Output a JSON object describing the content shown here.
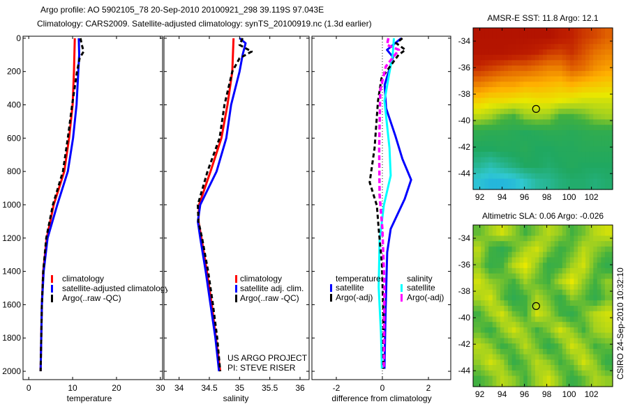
{
  "title": {
    "line1": "Argo profile: AO 5902105_78 20-Sep-2010 20100921_298 39.119S 97.043E",
    "line2": "Climatology: CARS2009. Satellite-adjusted climatology: synTS_20100919.nc (1.3d earlier)"
  },
  "credit": {
    "project": "US ARGO PROJECT",
    "pi": "PI: STEVE RISER",
    "stamp": "CSIRO 24-Sep-2010 10:32:10"
  },
  "chart_data": [
    {
      "type": "line",
      "xlabel": "temperature",
      "xlim": [
        -1.3,
        30.5
      ],
      "ylim": [
        2050,
        -12
      ],
      "xticks": [
        0,
        10,
        20,
        30
      ],
      "yticks": [
        0,
        200,
        400,
        600,
        800,
        1000,
        1200,
        1400,
        1600,
        1800,
        2000
      ],
      "legend": [
        "climatology",
        "satellite-adjusted climatology",
        "Argo(..raw -QC)"
      ],
      "series": [
        {
          "name": "climatology",
          "color": "#ff0000",
          "depth": [
            0,
            100,
            200,
            400,
            600,
            800,
            1000,
            1200,
            1400,
            1600,
            1800,
            2000
          ],
          "values": [
            10.5,
            10.4,
            10.3,
            10.0,
            9.2,
            8.1,
            5.7,
            4.1,
            3.3,
            3.0,
            2.85,
            2.7
          ]
        },
        {
          "name": "satellite-adjusted climatology",
          "color": "#0000ff",
          "depth": [
            0,
            100,
            200,
            400,
            600,
            800,
            1000,
            1200,
            1400,
            1600,
            1800,
            2000
          ],
          "values": [
            11.4,
            11.5,
            11.3,
            10.9,
            10.1,
            8.9,
            6.5,
            4.3,
            3.4,
            3.0,
            2.85,
            2.7
          ]
        },
        {
          "name": "Argo(..raw -QC)",
          "color": "#000000",
          "depth": [
            0,
            40,
            80,
            120,
            200,
            400,
            600,
            800,
            1000,
            1200,
            1400,
            1600,
            1800,
            2000
          ],
          "values": [
            11.8,
            12.1,
            12.5,
            11.6,
            11.0,
            9.9,
            8.9,
            7.8,
            5.5,
            4.0,
            3.3,
            3.0,
            2.85,
            2.7
          ]
        }
      ]
    },
    {
      "type": "line",
      "xlabel": "salinity",
      "xlim": [
        33.75,
        36.15
      ],
      "ylim": [
        2050,
        -12
      ],
      "xticks": [
        34,
        34.5,
        35,
        35.5,
        36
      ],
      "legend": [
        "climatology",
        "satellite adj. clim.",
        "Argo(..raw -QC)"
      ],
      "series": [
        {
          "name": "climatology",
          "color": "#ff0000",
          "depth": [
            0,
            100,
            200,
            400,
            600,
            800,
            1000,
            1100,
            1200,
            1400,
            1600,
            1800,
            2000
          ],
          "values": [
            34.9,
            34.89,
            34.88,
            34.8,
            34.7,
            34.52,
            34.33,
            34.32,
            34.37,
            34.46,
            34.54,
            34.61,
            34.68
          ]
        },
        {
          "name": "satellite adj. clim.",
          "color": "#0000ff",
          "depth": [
            0,
            30,
            100,
            200,
            400,
            600,
            800,
            1000,
            1100,
            1200,
            1400,
            1600,
            1800,
            2000
          ],
          "values": [
            35.0,
            35.1,
            35.05,
            35.0,
            34.86,
            34.78,
            34.62,
            34.35,
            34.31,
            34.35,
            34.44,
            34.52,
            34.6,
            34.66
          ]
        },
        {
          "name": "Argo(..raw -QC)",
          "color": "#000000",
          "depth": [
            0,
            40,
            80,
            120,
            200,
            400,
            600,
            800,
            1000,
            1100,
            1200,
            1400,
            1600,
            1800,
            2000
          ],
          "values": [
            35.05,
            35.0,
            35.2,
            35.0,
            34.88,
            34.75,
            34.67,
            34.47,
            34.31,
            34.32,
            34.38,
            34.48,
            34.56,
            34.63,
            34.68
          ]
        }
      ]
    },
    {
      "type": "line",
      "xlabel": "difference from climatology",
      "xlim": [
        -3.06,
        2.97
      ],
      "ylim": [
        2050,
        -12
      ],
      "xticks": [
        -2,
        0,
        2
      ],
      "legend_groups": [
        "temperature",
        "salinity"
      ],
      "legend": [
        "satellite",
        "Argo(-adj)",
        "satellite",
        "Argo(-adj)"
      ],
      "series": [
        {
          "name": "temperature satellite",
          "color": "#0000ff",
          "depth": [
            0,
            70,
            113,
            280,
            420,
            585,
            725,
            850,
            965,
            1145,
            1285,
            1635,
            1985
          ],
          "values": [
            0.82,
            0.2,
            0.46,
            0.1,
            0.16,
            0.56,
            0.87,
            1.25,
            0.97,
            0.36,
            0.21,
            0.14,
            0.09
          ]
        },
        {
          "name": "salinity satellite",
          "color": "#00ffff",
          "depth": [
            0,
            100,
            240,
            377,
            660,
            825,
            1005,
            1215,
            1495,
            1775,
            1985
          ],
          "values": [
            0.5,
            0.45,
            0.26,
            0.09,
            0.31,
            0.36,
            0.06,
            -0.12,
            -0.16,
            -0.06,
            -0.02
          ]
        },
        {
          "name": "temperature Argo(-adj)",
          "color": "#000000",
          "depth": [
            0,
            30,
            70,
            100,
            240,
            377,
            660,
            865,
            1005,
            1145,
            1355,
            1635,
            1985
          ],
          "values": [
            0.87,
            0.6,
            1.0,
            0.7,
            -0.04,
            -0.19,
            -0.34,
            -0.55,
            -0.24,
            -0.16,
            -0.02,
            0.04,
            0.04
          ]
        },
        {
          "name": "salinity Argo(-adj)",
          "color": "#ff00ff",
          "depth": [
            0,
            40,
            70,
            170,
            310,
            660,
            940,
            1145,
            1495,
            1985
          ],
          "values": [
            0.26,
            0.2,
            0.72,
            0.15,
            -0.09,
            -0.14,
            -0.12,
            0.0,
            0.09,
            0.06
          ]
        }
      ]
    },
    {
      "type": "heatmap",
      "title": "AMSR-E SST: 11.8 Argo: 12.1",
      "xlim": [
        91.4,
        103.9
      ],
      "ylim": [
        -45.2,
        -33.0
      ],
      "xticks": [
        92,
        94,
        96,
        98,
        100,
        102
      ],
      "yticks": [
        -34,
        -36,
        -38,
        -40,
        -42,
        -44
      ],
      "marker": [
        97.043,
        -39.119
      ],
      "grid": [
        [
          0.93,
          0.93,
          0.93,
          0.93,
          0.93,
          0.93,
          0.93,
          0.9,
          0.88,
          0.85,
          0.83,
          0.8
        ],
        [
          0.92,
          0.92,
          0.92,
          0.91,
          0.9,
          0.88,
          0.85,
          0.84,
          0.86,
          0.82,
          0.78,
          0.76
        ],
        [
          0.86,
          0.84,
          0.82,
          0.8,
          0.8,
          0.78,
          0.76,
          0.76,
          0.8,
          0.78,
          0.74,
          0.72
        ],
        [
          0.76,
          0.74,
          0.72,
          0.72,
          0.7,
          0.7,
          0.69,
          0.68,
          0.7,
          0.68,
          0.67,
          0.66
        ],
        [
          0.66,
          0.64,
          0.64,
          0.63,
          0.62,
          0.63,
          0.63,
          0.62,
          0.61,
          0.6,
          0.6,
          0.6
        ],
        [
          0.58,
          0.56,
          0.52,
          0.5,
          0.55,
          0.56,
          0.55,
          0.5,
          0.5,
          0.52,
          0.55,
          0.56
        ],
        [
          0.46,
          0.45,
          0.45,
          0.44,
          0.43,
          0.44,
          0.45,
          0.45,
          0.44,
          0.45,
          0.46,
          0.46
        ],
        [
          0.42,
          0.42,
          0.43,
          0.43,
          0.44,
          0.42,
          0.42,
          0.43,
          0.43,
          0.44,
          0.44,
          0.44
        ],
        [
          0.38,
          0.36,
          0.38,
          0.4,
          0.42,
          0.42,
          0.41,
          0.42,
          0.43,
          0.42,
          0.42,
          0.42
        ],
        [
          0.32,
          0.3,
          0.3,
          0.31,
          0.34,
          0.37,
          0.38,
          0.4,
          0.41,
          0.41,
          0.4,
          0.41
        ]
      ]
    },
    {
      "type": "heatmap",
      "title": "Altimetric SLA: 0.06 Argo: -0.026",
      "xlim": [
        91.4,
        103.9
      ],
      "ylim": [
        -45.2,
        -33.0
      ],
      "xticks": [
        92,
        94,
        96,
        98,
        100,
        102
      ],
      "yticks": [
        -34,
        -36,
        -38,
        -40,
        -42,
        -44
      ],
      "marker": [
        97.043,
        -39.119
      ],
      "grid": [
        [
          0.52,
          0.56,
          0.6,
          0.55,
          0.5,
          0.54,
          0.58,
          0.55,
          0.5,
          0.53,
          0.58,
          0.6
        ],
        [
          0.58,
          0.5,
          0.46,
          0.52,
          0.57,
          0.6,
          0.54,
          0.49,
          0.52,
          0.58,
          0.55,
          0.52
        ],
        [
          0.55,
          0.48,
          0.5,
          0.58,
          0.62,
          0.55,
          0.48,
          0.5,
          0.56,
          0.6,
          0.52,
          0.47
        ],
        [
          0.6,
          0.55,
          0.53,
          0.5,
          0.56,
          0.52,
          0.5,
          0.57,
          0.62,
          0.55,
          0.5,
          0.55
        ],
        [
          0.57,
          0.6,
          0.52,
          0.46,
          0.5,
          0.57,
          0.53,
          0.48,
          0.55,
          0.52,
          0.47,
          0.53
        ],
        [
          0.5,
          0.56,
          0.6,
          0.53,
          0.5,
          0.6,
          0.56,
          0.5,
          0.47,
          0.53,
          0.58,
          0.6
        ],
        [
          0.52,
          0.48,
          0.55,
          0.6,
          0.55,
          0.5,
          0.54,
          0.6,
          0.55,
          0.5,
          0.56,
          0.58
        ],
        [
          0.58,
          0.55,
          0.49,
          0.52,
          0.58,
          0.53,
          0.47,
          0.52,
          0.6,
          0.56,
          0.5,
          0.52
        ],
        [
          0.55,
          0.6,
          0.56,
          0.48,
          0.52,
          0.58,
          0.55,
          0.5,
          0.53,
          0.6,
          0.55,
          0.48
        ],
        [
          0.5,
          0.53,
          0.58,
          0.55,
          0.5,
          0.56,
          0.6,
          0.54,
          0.48,
          0.52,
          0.57,
          0.55
        ]
      ]
    }
  ],
  "colormap": [
    [
      0.0,
      "#0000a0"
    ],
    [
      0.2,
      "#0080ff"
    ],
    [
      0.33,
      "#30c8d0"
    ],
    [
      0.42,
      "#20a860"
    ],
    [
      0.5,
      "#40b040"
    ],
    [
      0.56,
      "#a0d020"
    ],
    [
      0.62,
      "#e8e800"
    ],
    [
      0.7,
      "#ffb000"
    ],
    [
      0.8,
      "#e06000"
    ],
    [
      0.88,
      "#c02000"
    ],
    [
      1.0,
      "#a00000"
    ]
  ]
}
